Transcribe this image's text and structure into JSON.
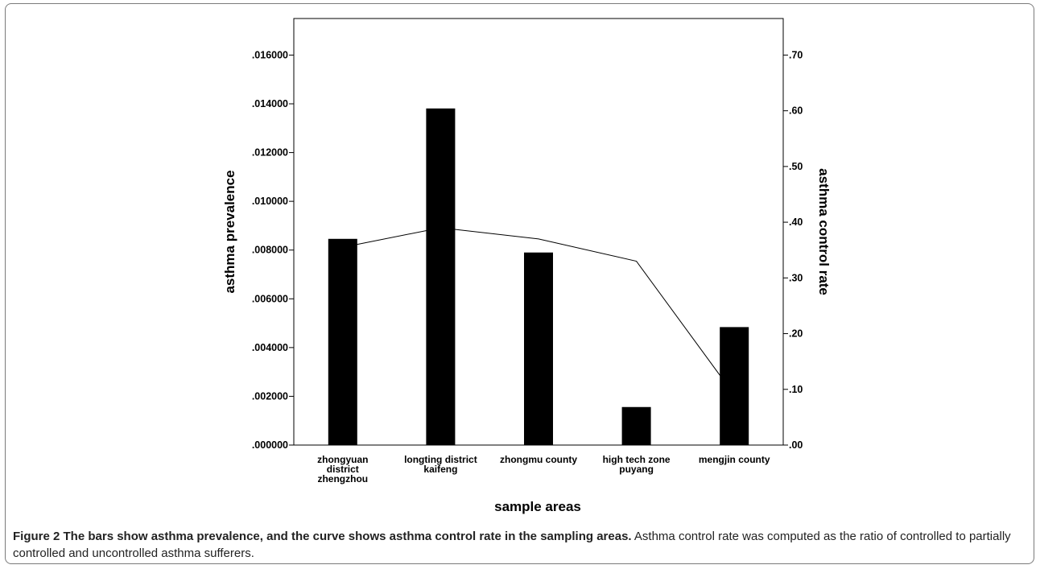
{
  "chart_data": {
    "type": "bar",
    "categories": [
      [
        "zhongyuan",
        "district",
        "zhengzhou"
      ],
      [
        "longting district",
        "kaifeng"
      ],
      [
        "zhongmu county"
      ],
      [
        "high tech zone",
        "puyang"
      ],
      [
        "mengjin county"
      ]
    ],
    "series": [
      {
        "name": "asthma prevalence",
        "kind": "bar",
        "axis": "left",
        "values": [
          0.00846,
          0.01381,
          0.0079,
          0.00156,
          0.00484
        ]
      },
      {
        "name": "asthma control rate",
        "kind": "line",
        "axis": "right",
        "values": [
          0.355,
          0.39,
          0.37,
          0.33,
          0.09
        ]
      }
    ],
    "xlabel": "sample areas",
    "ylabel_left": "asthma prevalence",
    "ylabel_right": "asthma control rate",
    "ylim_left": [
      0,
      0.0175
    ],
    "ylim_right": [
      0,
      0.7656
    ],
    "left_ticks": [
      0,
      0.002,
      0.004,
      0.006,
      0.008,
      0.01,
      0.012,
      0.014,
      0.016
    ],
    "left_tick_labels": [
      ".000000",
      ".002000",
      ".004000",
      ".006000",
      ".008000",
      ".010000",
      ".012000",
      ".014000",
      ".016000"
    ],
    "right_ticks": [
      0,
      0.1,
      0.2,
      0.3,
      0.4,
      0.5,
      0.6,
      0.7
    ],
    "right_tick_labels": [
      ".00",
      ".10",
      ".20",
      ".30",
      ".40",
      ".50",
      ".60",
      ".70"
    ],
    "grid": false,
    "bar_color": "#000000",
    "line_color": "#000000"
  },
  "caption": {
    "bold": "Figure 2 The bars show asthma prevalence, and the curve shows asthma control rate in the sampling areas.",
    "text": " Asthma control rate was computed as the ratio of controlled to partially controlled and uncontrolled asthma sufferers."
  }
}
